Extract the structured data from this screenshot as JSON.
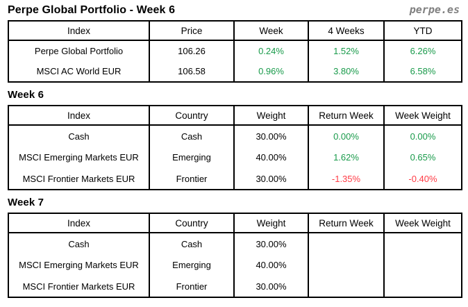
{
  "header": {
    "title": "Perpe Global Portfolio - Week 6",
    "brand": "perpe.es"
  },
  "colors": {
    "positive": "#189A4A",
    "negative": "#FF3B45",
    "brand": "#808080",
    "border": "#000000",
    "text": "#000000",
    "background": "#FFFFFF"
  },
  "chart_data": [
    {
      "type": "table",
      "title": "",
      "columns": [
        "Index",
        "Price",
        "Week",
        "4 Weeks",
        "YTD"
      ],
      "rows": [
        [
          "Perpe Global Portfolio",
          "106.26",
          "0.24%",
          "1.52%",
          "6.26%"
        ],
        [
          "MSCI AC World EUR",
          "106.58",
          "0.96%",
          "3.80%",
          "6.58%"
        ]
      ],
      "value_trends": [
        [
          "positive",
          "positive",
          "positive"
        ],
        [
          "positive",
          "positive",
          "positive"
        ]
      ]
    },
    {
      "type": "table",
      "title": "Week 6",
      "columns": [
        "Index",
        "Country",
        "Weight",
        "Return Week",
        "Week Weight"
      ],
      "rows": [
        [
          "Cash",
          "Cash",
          "30.00%",
          "0.00%",
          "0.00%"
        ],
        [
          "MSCI Emerging Markets EUR",
          "Emerging",
          "40.00%",
          "1.62%",
          "0.65%"
        ],
        [
          "MSCI Frontier Markets EUR",
          "Frontier",
          "30.00%",
          "-1.35%",
          "-0.40%"
        ]
      ],
      "value_trends": [
        [
          "positive",
          "positive"
        ],
        [
          "positive",
          "positive"
        ],
        [
          "negative",
          "negative"
        ]
      ]
    },
    {
      "type": "table",
      "title": "Week 7",
      "columns": [
        "Index",
        "Country",
        "Weight",
        "Return Week",
        "Week Weight"
      ],
      "rows": [
        [
          "Cash",
          "Cash",
          "30.00%",
          "",
          ""
        ],
        [
          "MSCI Emerging Markets EUR",
          "Emerging",
          "40.00%",
          "",
          ""
        ],
        [
          "MSCI Frontier Markets EUR",
          "Frontier",
          "30.00%",
          "",
          ""
        ]
      ],
      "value_trends": [
        [
          "none",
          "none"
        ],
        [
          "none",
          "none"
        ],
        [
          "none",
          "none"
        ]
      ]
    }
  ]
}
